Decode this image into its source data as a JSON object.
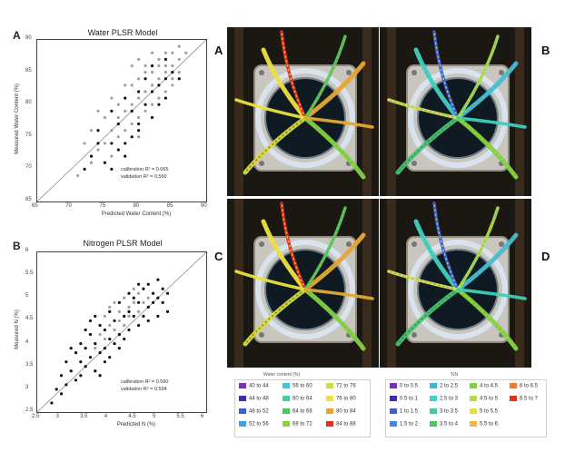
{
  "charts": {
    "water": {
      "letter": "A",
      "title": "Water PLSR Model",
      "xlabel": "Predicted Water Content (%)",
      "ylabel": "Measured Water Content (%)",
      "xticks": [
        "65",
        "70",
        "75",
        "80",
        "85",
        "90"
      ],
      "yticks": [
        "65",
        "70",
        "75",
        "80",
        "85",
        "90"
      ],
      "stat1": "calibration R² = 0.665",
      "stat2": "validation R² = 0.560"
    },
    "nitrogen": {
      "letter": "B",
      "title": "Nitrogen PLSR Model",
      "xlabel": "Predicted N (%)",
      "ylabel": "Measured N (%)",
      "xticks": [
        "2.5",
        "3",
        "3.5",
        "4",
        "4.5",
        "5",
        "5.5",
        "6"
      ],
      "yticks": [
        "2.5",
        "3",
        "3.5",
        "4",
        "4.5",
        "5",
        "5.5",
        "6"
      ],
      "stat1": "calibration R² = 0.560",
      "stat2": "validation R² = 0.594"
    }
  },
  "chart_data": [
    {
      "type": "scatter",
      "title": "Water PLSR Model",
      "xlabel": "Predicted Water Content (%)",
      "ylabel": "Measured Water Content (%)",
      "xlim": [
        65,
        90
      ],
      "ylim": [
        65,
        90
      ],
      "series": [
        {
          "name": "calibration",
          "color": "#a0a0a0",
          "points": [
            [
              72,
              74
            ],
            [
              74,
              73
            ],
            [
              75,
              78
            ],
            [
              76,
              76
            ],
            [
              77,
              80
            ],
            [
              78,
              79
            ],
            [
              79,
              77
            ],
            [
              79,
              83
            ],
            [
              80,
              81
            ],
            [
              80,
              84
            ],
            [
              81,
              82
            ],
            [
              81,
              79
            ],
            [
              82,
              85
            ],
            [
              82,
              83
            ],
            [
              83,
              86
            ],
            [
              83,
              84
            ],
            [
              84,
              85
            ],
            [
              84,
              88
            ],
            [
              85,
              86
            ],
            [
              85,
              83
            ],
            [
              86,
              87
            ],
            [
              86,
              85
            ],
            [
              74,
              79
            ],
            [
              76,
              81
            ],
            [
              77,
              75
            ],
            [
              78,
              83
            ],
            [
              79,
              86
            ],
            [
              80,
              87
            ],
            [
              81,
              86
            ],
            [
              82,
              80
            ],
            [
              83,
              81
            ],
            [
              84,
              82
            ],
            [
              73,
              76
            ],
            [
              75,
              74
            ],
            [
              77,
              78
            ],
            [
              78,
              76
            ],
            [
              80,
              78
            ],
            [
              81,
              85
            ],
            [
              82,
              88
            ],
            [
              84,
              86
            ],
            [
              85,
              88
            ],
            [
              86,
              89
            ],
            [
              71,
              69
            ],
            [
              73,
              71
            ],
            [
              76,
              72
            ],
            [
              79,
              80
            ],
            [
              80,
              75
            ],
            [
              83,
              87
            ],
            [
              85,
              84
            ],
            [
              87,
              88
            ]
          ]
        },
        {
          "name": "validation",
          "color": "#111111",
          "points": [
            [
              73,
              72
            ],
            [
              74,
              76
            ],
            [
              75,
              71
            ],
            [
              76,
              74
            ],
            [
              76,
              79
            ],
            [
              77,
              73
            ],
            [
              77,
              77
            ],
            [
              78,
              74
            ],
            [
              78,
              81
            ],
            [
              79,
              75
            ],
            [
              79,
              79
            ],
            [
              80,
              77
            ],
            [
              80,
              82
            ],
            [
              81,
              80
            ],
            [
              81,
              84
            ],
            [
              82,
              82
            ],
            [
              82,
              78
            ],
            [
              83,
              83
            ],
            [
              83,
              80
            ],
            [
              84,
              84
            ],
            [
              84,
              81
            ],
            [
              85,
              85
            ],
            [
              76,
              70
            ],
            [
              78,
              72
            ],
            [
              80,
              76
            ],
            [
              82,
              86
            ],
            [
              84,
              87
            ],
            [
              72,
              70
            ],
            [
              74,
              74
            ],
            [
              86,
              84
            ]
          ]
        }
      ]
    },
    {
      "type": "scatter",
      "title": "Nitrogen PLSR Model",
      "xlabel": "Predicted N (%)",
      "ylabel": "Measured N (%)",
      "xlim": [
        2.5,
        6
      ],
      "ylim": [
        2.5,
        6
      ],
      "series": [
        {
          "name": "calibration",
          "color": "#a0a0a0",
          "points": [
            [
              3.9,
              4.6
            ],
            [
              4.0,
              4.8
            ],
            [
              4.1,
              4.9
            ],
            [
              4.2,
              4.7
            ],
            [
              4.3,
              5.0
            ],
            [
              4.4,
              4.8
            ],
            [
              4.5,
              4.9
            ],
            [
              4.6,
              5.1
            ],
            [
              4.3,
              4.4
            ],
            [
              4.1,
              4.3
            ],
            [
              3.8,
              4.2
            ],
            [
              4.7,
              4.9
            ],
            [
              4.0,
              4.4
            ],
            [
              4.5,
              5.2
            ],
            [
              4.2,
              4.5
            ],
            [
              3.7,
              3.9
            ],
            [
              4.4,
              4.6
            ],
            [
              4.6,
              4.7
            ],
            [
              3.9,
              4.1
            ],
            [
              4.8,
              5.0
            ]
          ]
        },
        {
          "name": "validation",
          "color": "#111111",
          "points": [
            [
              2.9,
              3.0
            ],
            [
              3.0,
              3.3
            ],
            [
              3.1,
              3.1
            ],
            [
              3.1,
              3.6
            ],
            [
              3.2,
              3.4
            ],
            [
              3.3,
              3.2
            ],
            [
              3.3,
              3.8
            ],
            [
              3.4,
              3.6
            ],
            [
              3.4,
              4.0
            ],
            [
              3.5,
              3.5
            ],
            [
              3.5,
              3.9
            ],
            [
              3.6,
              3.7
            ],
            [
              3.6,
              4.2
            ],
            [
              3.7,
              3.4
            ],
            [
              3.7,
              4.0
            ],
            [
              3.8,
              3.8
            ],
            [
              3.8,
              4.4
            ],
            [
              3.9,
              3.9
            ],
            [
              3.9,
              4.3
            ],
            [
              4.0,
              4.1
            ],
            [
              4.0,
              3.7
            ],
            [
              4.1,
              4.5
            ],
            [
              4.1,
              4.0
            ],
            [
              4.2,
              4.2
            ],
            [
              4.2,
              4.9
            ],
            [
              4.3,
              4.6
            ],
            [
              4.3,
              4.1
            ],
            [
              4.4,
              4.7
            ],
            [
              4.4,
              4.3
            ],
            [
              4.5,
              4.6
            ],
            [
              4.5,
              5.0
            ],
            [
              4.6,
              4.4
            ],
            [
              4.6,
              4.9
            ],
            [
              4.7,
              5.2
            ],
            [
              4.7,
              4.6
            ],
            [
              4.8,
              4.8
            ],
            [
              4.8,
              5.3
            ],
            [
              4.9,
              4.9
            ],
            [
              4.9,
              5.1
            ],
            [
              5.0,
              5.0
            ],
            [
              5.0,
              5.4
            ],
            [
              5.1,
              4.9
            ],
            [
              5.1,
              5.2
            ],
            [
              5.2,
              4.7
            ],
            [
              5.2,
              5.1
            ],
            [
              3.2,
              3.9
            ],
            [
              3.0,
              2.9
            ],
            [
              3.6,
              4.5
            ],
            [
              3.8,
              3.3
            ],
            [
              4.0,
              4.7
            ],
            [
              3.4,
              3.3
            ],
            [
              3.5,
              4.3
            ],
            [
              3.7,
              4.6
            ],
            [
              3.9,
              3.6
            ],
            [
              4.2,
              3.9
            ],
            [
              4.4,
              5.1
            ],
            [
              4.6,
              5.3
            ],
            [
              4.8,
              4.5
            ],
            [
              5.0,
              4.6
            ],
            [
              2.8,
              2.7
            ]
          ]
        }
      ]
    }
  ],
  "photos": [
    {
      "letter": "A",
      "mode": "water"
    },
    {
      "letter": "B",
      "mode": "n"
    },
    {
      "letter": "C",
      "mode": "water"
    },
    {
      "letter": "D",
      "mode": "n"
    }
  ],
  "legend_water": {
    "header": "Water content (%)",
    "items": [
      {
        "label": "40 to 44",
        "color": "#7b2fb8"
      },
      {
        "label": "44 to 48",
        "color": "#3a2db0"
      },
      {
        "label": "48 to 52",
        "color": "#3c5fd8"
      },
      {
        "label": "52 to 56",
        "color": "#3ea0e8"
      },
      {
        "label": "56 to 60",
        "color": "#3fc8d8"
      },
      {
        "label": "60 to 64",
        "color": "#3fd0a0"
      },
      {
        "label": "64 to 68",
        "color": "#48c860"
      },
      {
        "label": "68 to 72",
        "color": "#8ad040"
      },
      {
        "label": "72 to 76",
        "color": "#c8e040"
      },
      {
        "label": "76 to 80",
        "color": "#f0e040"
      },
      {
        "label": "80 to 84",
        "color": "#f0a030"
      },
      {
        "label": "84 to 88",
        "color": "#e03020"
      }
    ]
  },
  "legend_n": {
    "header": "%N",
    "items": [
      {
        "label": "0 to 0.5",
        "color": "#7b2fb8"
      },
      {
        "label": "0.5 to 1",
        "color": "#3a2db0"
      },
      {
        "label": "1 to 1.5",
        "color": "#3c5fd8"
      },
      {
        "label": "1.5 to 2",
        "color": "#3e88e8"
      },
      {
        "label": "2 to 2.5",
        "color": "#3fb8e0"
      },
      {
        "label": "2.5 to 3",
        "color": "#3fd0c8"
      },
      {
        "label": "3 to 3.5",
        "color": "#3fd09a"
      },
      {
        "label": "3.5 to 4",
        "color": "#45c860"
      },
      {
        "label": "4 to 4.5",
        "color": "#80d040"
      },
      {
        "label": "4.5 to 5",
        "color": "#b8dc40"
      },
      {
        "label": "5 to 5.5",
        "color": "#e8e040"
      },
      {
        "label": "5.5 to 6",
        "color": "#f0b840"
      },
      {
        "label": "6 to 6.5",
        "color": "#f07830"
      },
      {
        "label": "6.5 to 7",
        "color": "#e03020"
      }
    ]
  }
}
